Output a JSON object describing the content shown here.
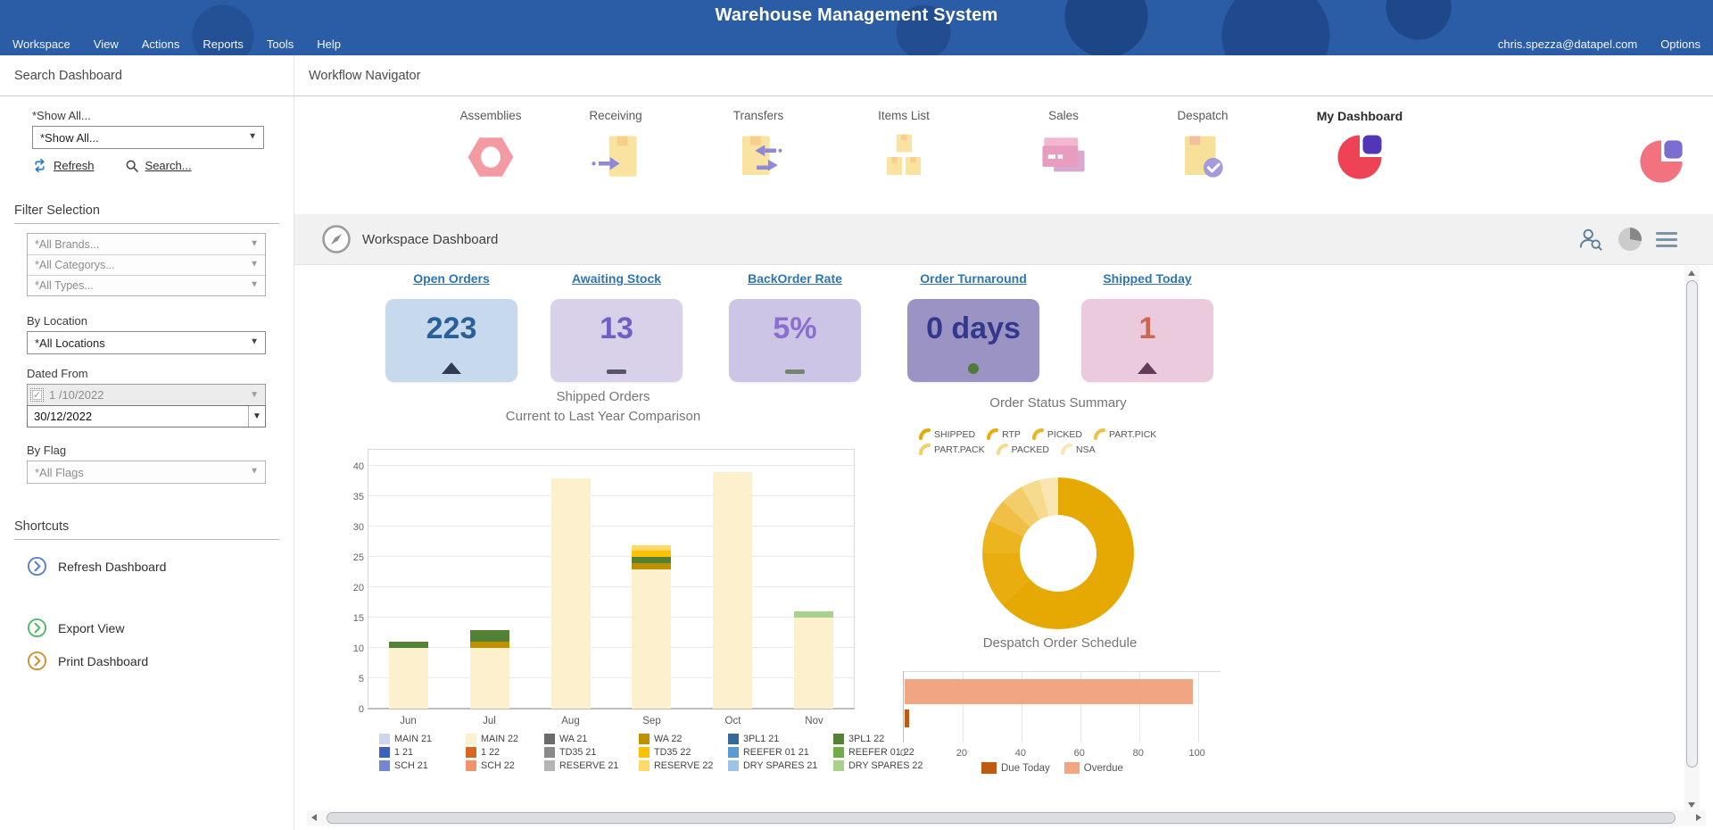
{
  "header": {
    "title": "Warehouse Management System",
    "menu": [
      "Workspace",
      "View",
      "Actions",
      "Reports",
      "Tools",
      "Help"
    ],
    "user_email": "chris.spezza@datapel.com",
    "options": "Options"
  },
  "sidebar": {
    "title": "Search Dashboard",
    "show_all_label": "*Show All...",
    "show_all_value": "*Show All...",
    "refresh": "Refresh",
    "search": "Search...",
    "filter_section": "Filter Selection",
    "brand_filter": "*All Brands...",
    "category_filter": "*All Categorys...",
    "type_filter": "*All Types...",
    "by_location": "By Location",
    "location_value": "*All Locations",
    "dated_from": "Dated From",
    "date_from": "1 /10/2022",
    "date_to": "30/12/2022",
    "by_flag": "By Flag",
    "flag_value": "*All Flags",
    "shortcuts_title": "Shortcuts",
    "shortcuts": [
      {
        "label": "Refresh Dashboard",
        "color": "#5b7fd4"
      },
      {
        "label": "Export View",
        "color": "#53b96a"
      },
      {
        "label": "Print Dashboard",
        "color": "#cf9136"
      }
    ]
  },
  "workflow": {
    "title": "Workflow Navigator",
    "items": [
      "Assemblies",
      "Receiving",
      "Transfers",
      "Items List",
      "Sales",
      "Despatch",
      "My Dashboard"
    ]
  },
  "toolbar": {
    "title": "Workspace Dashboard"
  },
  "kpis": [
    {
      "label": "Open Orders",
      "value": "223",
      "bg": "#c7d9ec",
      "num_color": "#2a6099",
      "indicator": "up",
      "ind_color": "#2f3b52"
    },
    {
      "label": "Awaiting Stock",
      "value": "13",
      "bg": "#d8d1e9",
      "num_color": "#6f5fc5",
      "indicator": "dash",
      "ind_color": "#56566a"
    },
    {
      "label": "BackOrder Rate",
      "value": "5%",
      "bg": "#cdc5e5",
      "num_color": "#8a6fd0",
      "indicator": "dash",
      "ind_color": "#74846f"
    },
    {
      "label": "Order Turnaround",
      "value": "0 days",
      "bg": "#9b93c4",
      "num_color": "#33388c",
      "indicator": "dot",
      "ind_color": "#4e7b3a"
    },
    {
      "label": "Shipped Today",
      "value": "1",
      "bg": "#eccade",
      "num_color": "#cc6650",
      "indicator": "up",
      "ind_color": "#663a59"
    }
  ],
  "chart_data": [
    {
      "id": "shipped_orders",
      "type": "bar",
      "stacked": true,
      "title": "Shipped Orders",
      "subtitle": "Current to Last Year Comparison",
      "categories": [
        "Jun",
        "Jul",
        "Aug",
        "Sep",
        "Oct",
        "Nov"
      ],
      "yticks": [
        0,
        5,
        10,
        15,
        20,
        25,
        30,
        35,
        40
      ],
      "ylim": [
        0,
        43
      ],
      "series": [
        {
          "name": "MAIN 22",
          "color": "#fdf1cd",
          "values": [
            10,
            10,
            38,
            23,
            39,
            15
          ]
        },
        {
          "name": "WA 22",
          "color": "#bf9000",
          "values": [
            0,
            1,
            0,
            1,
            0,
            0
          ]
        },
        {
          "name": "3PL1 22",
          "color": "#538135",
          "values": [
            1,
            2,
            0,
            1,
            0,
            0
          ]
        },
        {
          "name": "TD35 22",
          "color": "#ffc000",
          "values": [
            0,
            0,
            0,
            1,
            0,
            0
          ]
        },
        {
          "name": "RESERVE 22",
          "color": "#ffd966",
          "values": [
            0,
            0,
            0,
            1,
            0,
            0
          ]
        },
        {
          "name": "DRY SPARES 22",
          "color": "#a9d18e",
          "values": [
            0,
            0,
            0,
            0,
            0,
            1
          ]
        }
      ],
      "legend": [
        {
          "name": "MAIN 21",
          "color": "#ccd7ee"
        },
        {
          "name": "MAIN 22",
          "color": "#fdf1cd"
        },
        {
          "name": "WA 21",
          "color": "#6b6b6b"
        },
        {
          "name": "WA 22",
          "color": "#bf9000"
        },
        {
          "name": "3PL1 21",
          "color": "#38689a"
        },
        {
          "name": "3PL1 22",
          "color": "#538135"
        },
        {
          "name": "1 21",
          "color": "#3d5fc0"
        },
        {
          "name": "1 22",
          "color": "#d9651f"
        },
        {
          "name": "TD35 21",
          "color": "#8a8a8a"
        },
        {
          "name": "TD35 22",
          "color": "#ffc000"
        },
        {
          "name": "REEFER 01 21",
          "color": "#5b9bd5"
        },
        {
          "name": "REEFER 01 22",
          "color": "#70ad47"
        },
        {
          "name": "SCH 21",
          "color": "#7286d2"
        },
        {
          "name": "SCH 22",
          "color": "#f0946a"
        },
        {
          "name": "RESERVE 21",
          "color": "#b5b5b5"
        },
        {
          "name": "RESERVE 22",
          "color": "#ffd966"
        },
        {
          "name": "DRY SPARES 21",
          "color": "#9dc3e6"
        },
        {
          "name": "DRY SPARES 22",
          "color": "#a9d18e"
        }
      ]
    },
    {
      "id": "order_status",
      "type": "pie",
      "donut": true,
      "title": "Order Status Summary",
      "slices": [
        {
          "name": "SHIPPED",
          "value": 63,
          "color": "#e6a802"
        },
        {
          "name": "RTP",
          "value": 12,
          "color": "#e9ad10"
        },
        {
          "name": "PICKED",
          "value": 7,
          "color": "#ecb51f"
        },
        {
          "name": "PART.PICK",
          "value": 5,
          "color": "#efc045"
        },
        {
          "name": "PART.PACK",
          "value": 5,
          "color": "#f3cd69"
        },
        {
          "name": "PACKED",
          "value": 4,
          "color": "#f6da8e"
        },
        {
          "name": "NSA",
          "value": 4,
          "color": "#f9e6b2"
        }
      ],
      "legend_rows": [
        4,
        3
      ]
    },
    {
      "id": "despatch_schedule",
      "type": "bar",
      "orientation": "horizontal",
      "title": "Despatch Order Schedule",
      "xticks": [
        0,
        20,
        40,
        60,
        80,
        100
      ],
      "xlim": [
        0,
        108
      ],
      "series": [
        {
          "name": "Overdue",
          "color": "#f1a583",
          "value": 98
        },
        {
          "name": "Due Today",
          "color": "#c05a11",
          "value": 1.5
        }
      ],
      "legend": [
        "Due Today",
        "Overdue"
      ]
    }
  ]
}
